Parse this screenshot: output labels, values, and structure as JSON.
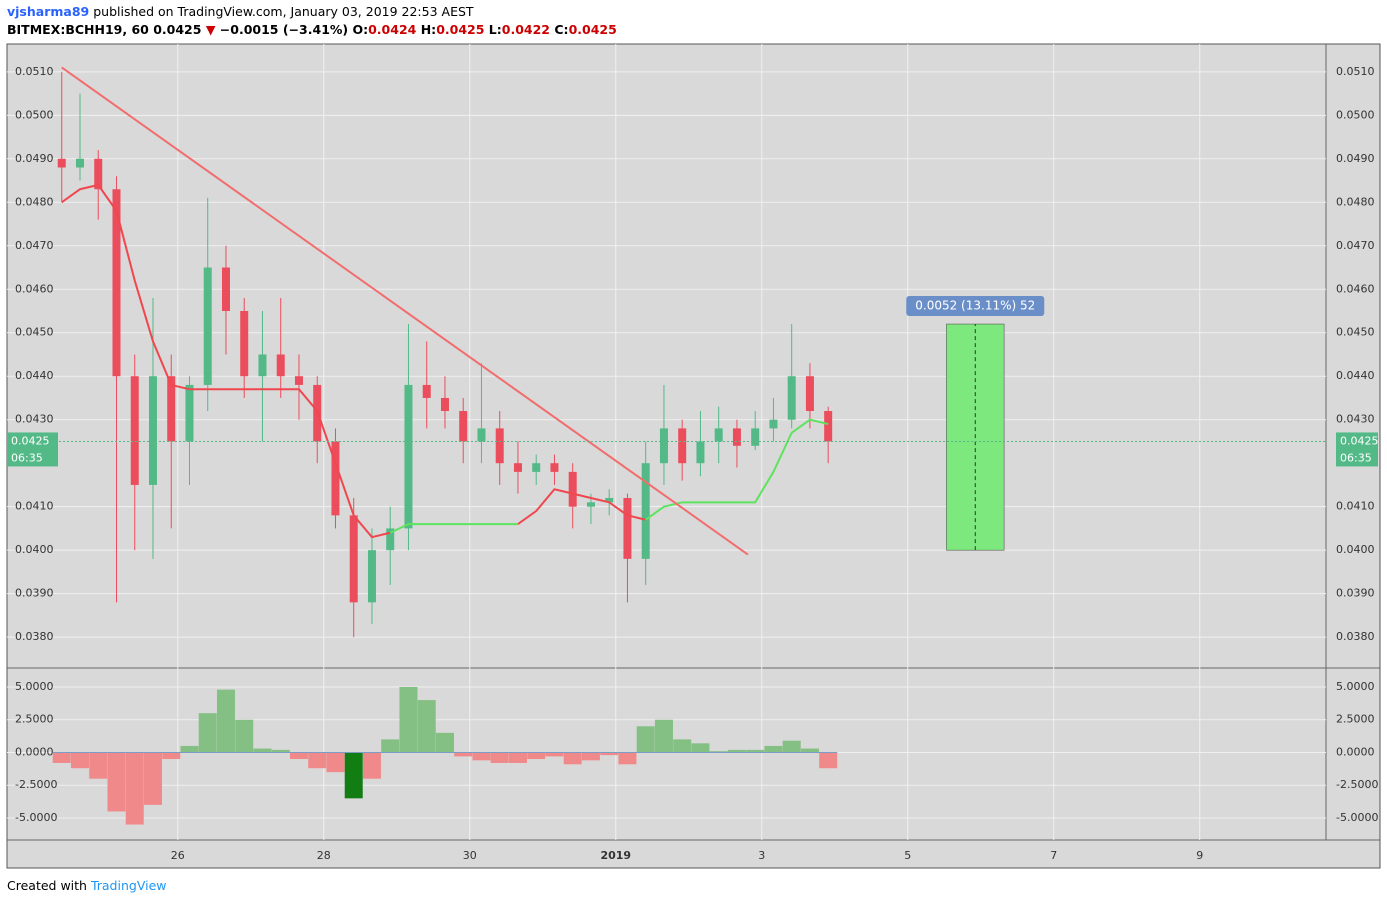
{
  "header": {
    "author": "vjsharma89",
    "published": "published on TradingView.com, January 03, 2019 22:53 AEST",
    "symbol": "BITMEX:BCHH19, 60",
    "last": "0.0425",
    "arrow": "▼",
    "change": "−0.0015 (−3.41%)",
    "ohlc": [
      {
        "label": "O:",
        "value": "0.0424"
      },
      {
        "label": "H:",
        "value": "0.0425"
      },
      {
        "label": "L:",
        "value": "0.0422"
      },
      {
        "label": "C:",
        "value": "0.0425"
      }
    ]
  },
  "footer": {
    "created": "Created with",
    "brand": "TradingView"
  },
  "chart_data": [
    {
      "type": "candlestick",
      "x": [
        24.41,
        24.66,
        24.91,
        25.16,
        25.41,
        25.66,
        25.91,
        26.16,
        26.41,
        26.66,
        26.91,
        27.16,
        27.41,
        27.66,
        27.91,
        28.16,
        28.41,
        28.66,
        28.91,
        29.16,
        29.41,
        29.66,
        29.91,
        30.16,
        30.41,
        30.66,
        30.91,
        31.16,
        31.41,
        31.66,
        31.91,
        32.16,
        32.41,
        32.66,
        32.91,
        33.16,
        33.41,
        33.66,
        33.91,
        34.16,
        34.41,
        34.66,
        34.91
      ],
      "open": [
        0.049,
        0.0488,
        0.049,
        0.0483,
        0.044,
        0.0415,
        0.044,
        0.0425,
        0.0438,
        0.0465,
        0.0455,
        0.044,
        0.0445,
        0.044,
        0.0438,
        0.0425,
        0.0408,
        0.0388,
        0.04,
        0.0405,
        0.0438,
        0.0435,
        0.0432,
        0.0425,
        0.0428,
        0.042,
        0.0418,
        0.042,
        0.0418,
        0.041,
        0.0411,
        0.0412,
        0.0398,
        0.042,
        0.0428,
        0.042,
        0.0425,
        0.0428,
        0.0424,
        0.0428,
        0.043,
        0.044,
        0.0432
      ],
      "high": [
        0.051,
        0.0505,
        0.0492,
        0.0486,
        0.0445,
        0.0458,
        0.0445,
        0.044,
        0.0481,
        0.047,
        0.0458,
        0.0455,
        0.0458,
        0.0445,
        0.044,
        0.0428,
        0.0412,
        0.0405,
        0.041,
        0.0452,
        0.0448,
        0.044,
        0.0435,
        0.0443,
        0.0432,
        0.0425,
        0.0422,
        0.0422,
        0.042,
        0.0413,
        0.0414,
        0.0413,
        0.0425,
        0.0438,
        0.043,
        0.0432,
        0.0433,
        0.043,
        0.0432,
        0.0435,
        0.0452,
        0.0443,
        0.0433
      ],
      "low": [
        0.048,
        0.0485,
        0.0476,
        0.0388,
        0.04,
        0.0398,
        0.0405,
        0.0415,
        0.0432,
        0.0445,
        0.0435,
        0.0425,
        0.0435,
        0.043,
        0.042,
        0.0405,
        0.038,
        0.0383,
        0.0392,
        0.04,
        0.0428,
        0.0428,
        0.042,
        0.042,
        0.0415,
        0.0413,
        0.0415,
        0.0415,
        0.0405,
        0.0406,
        0.0408,
        0.0388,
        0.0392,
        0.0415,
        0.0416,
        0.0417,
        0.042,
        0.0419,
        0.0423,
        0.0425,
        0.0428,
        0.0428,
        0.042
      ],
      "close": [
        0.0488,
        0.049,
        0.0483,
        0.044,
        0.0415,
        0.044,
        0.0425,
        0.0438,
        0.0465,
        0.0455,
        0.044,
        0.0445,
        0.044,
        0.0438,
        0.0425,
        0.0408,
        0.0388,
        0.04,
        0.0405,
        0.0438,
        0.0435,
        0.0432,
        0.0425,
        0.0428,
        0.042,
        0.0418,
        0.042,
        0.0418,
        0.041,
        0.0411,
        0.0412,
        0.0398,
        0.042,
        0.0428,
        0.042,
        0.0425,
        0.0428,
        0.0424,
        0.0428,
        0.043,
        0.044,
        0.0432,
        0.0425
      ],
      "up_color": "#53b987",
      "down_color": "#eb4d5c",
      "ma_down": [
        0.048,
        0.0483,
        0.0484,
        0.0478,
        0.0462,
        0.0448,
        0.0438,
        0.0437,
        0.0437,
        0.0437,
        0.0437,
        0.0437,
        0.0437,
        0.0437,
        0.0432,
        0.042,
        0.0408,
        0.0403,
        0.0404,
        null,
        null,
        null,
        null,
        null,
        null,
        0.0406,
        0.0409,
        0.0414,
        0.0413,
        0.0412,
        0.0411,
        0.0408,
        0.0407,
        null,
        null,
        null,
        null,
        null,
        null,
        null,
        null,
        null,
        null
      ],
      "ma_up": [
        null,
        null,
        null,
        null,
        null,
        null,
        null,
        null,
        null,
        null,
        null,
        null,
        null,
        null,
        null,
        null,
        null,
        null,
        0.0404,
        0.0406,
        0.0406,
        0.0406,
        0.0406,
        0.0406,
        0.0406,
        0.0406,
        null,
        null,
        null,
        null,
        null,
        null,
        0.0407,
        0.041,
        0.0411,
        0.0411,
        0.0411,
        0.0411,
        0.0411,
        0.0418,
        0.0427,
        0.043,
        0.0429
      ],
      "ma_down_color": "#f0474f",
      "ma_up_color": "#5de35d",
      "trendline": {
        "x": [
          24.41,
          33.81
        ],
        "y": [
          0.0511,
          0.0399
        ],
        "color": "#f26d6d"
      },
      "measure": {
        "x": [
          36.53,
          37.32
        ],
        "y": [
          0.04,
          0.0452
        ],
        "label": "0.0052 (13.11%) 52",
        "color": "#7de87d"
      },
      "last_price": {
        "value": 0.0425,
        "label": "0.0425"
      },
      "countdown": "06:35",
      "xlim": [
        23.66,
        41.73
      ],
      "ylim": [
        0.03729,
        0.05164
      ],
      "yticks": [
        {
          "value": 0.038,
          "label": "0.0380"
        },
        {
          "value": 0.039,
          "label": "0.0390"
        },
        {
          "value": 0.04,
          "label": "0.0400"
        },
        {
          "value": 0.041,
          "label": "0.0410"
        },
        {
          "value": 0.043,
          "label": "0.0430"
        },
        {
          "value": 0.044,
          "label": "0.0440"
        },
        {
          "value": 0.045,
          "label": "0.0450"
        },
        {
          "value": 0.046,
          "label": "0.0460"
        },
        {
          "value": 0.047,
          "label": "0.0470"
        },
        {
          "value": 0.048,
          "label": "0.0480"
        },
        {
          "value": 0.049,
          "label": "0.0490"
        },
        {
          "value": 0.05,
          "label": "0.0500"
        },
        {
          "value": 0.051,
          "label": "0.0510"
        }
      ],
      "grid": true
    },
    {
      "type": "histogram",
      "values": [
        -0.8,
        -1.2,
        -2,
        -4.5,
        -5.5,
        -4,
        -0.5,
        0.5,
        3,
        4.8,
        2.5,
        0.3,
        0.2,
        -0.5,
        -1.2,
        -1.5,
        -3.5,
        -2,
        1,
        5,
        4,
        1.5,
        -0.3,
        -0.6,
        -0.8,
        -0.8,
        -0.5,
        -0.3,
        -0.9,
        -0.6,
        -0.2,
        -0.9,
        2,
        2.5,
        1,
        0.7,
        0.1,
        0.2,
        0.2,
        0.5,
        0.9,
        0.3,
        -1.2
      ],
      "colors": [
        "#f08a8a",
        "#f08a8a",
        "#f08a8a",
        "#f08a8a",
        "#f08a8a",
        "#f08a8a",
        "#f08a8a",
        "#84bf84",
        "#84bf84",
        "#84bf84",
        "#84bf84",
        "#84bf84",
        "#84bf84",
        "#f08a8a",
        "#f08a8a",
        "#f08a8a",
        "#127d12",
        "#f08a8a",
        "#84bf84",
        "#84bf84",
        "#84bf84",
        "#84bf84",
        "#f08a8a",
        "#f08a8a",
        "#f08a8a",
        "#f08a8a",
        "#f08a8a",
        "#f08a8a",
        "#f08a8a",
        "#f08a8a",
        "#f08a8a",
        "#f08a8a",
        "#84bf84",
        "#84bf84",
        "#84bf84",
        "#84bf84",
        "#84bf84",
        "#84bf84",
        "#84bf84",
        "#84bf84",
        "#84bf84",
        "#84bf84",
        "#f08a8a"
      ],
      "xlim": [
        23.66,
        41.73
      ],
      "ylim": [
        -6.68,
        6.45
      ],
      "yticks": [
        {
          "value": 5,
          "label": "5.0000"
        },
        {
          "value": 2.5,
          "label": "2.5000"
        },
        {
          "value": 0,
          "label": "0.0000"
        },
        {
          "value": -2.5,
          "label": "-2.5000"
        },
        {
          "value": -5,
          "label": "-5.0000"
        }
      ],
      "xticks": [
        26,
        28,
        30,
        {
          "value": 32,
          "label": "2019"
        },
        {
          "value": 34,
          "label": "3"
        },
        {
          "value": 36,
          "label": "5"
        },
        {
          "value": 38,
          "label": "7"
        },
        {
          "value": 40,
          "label": "9"
        }
      ],
      "grid": true
    }
  ]
}
